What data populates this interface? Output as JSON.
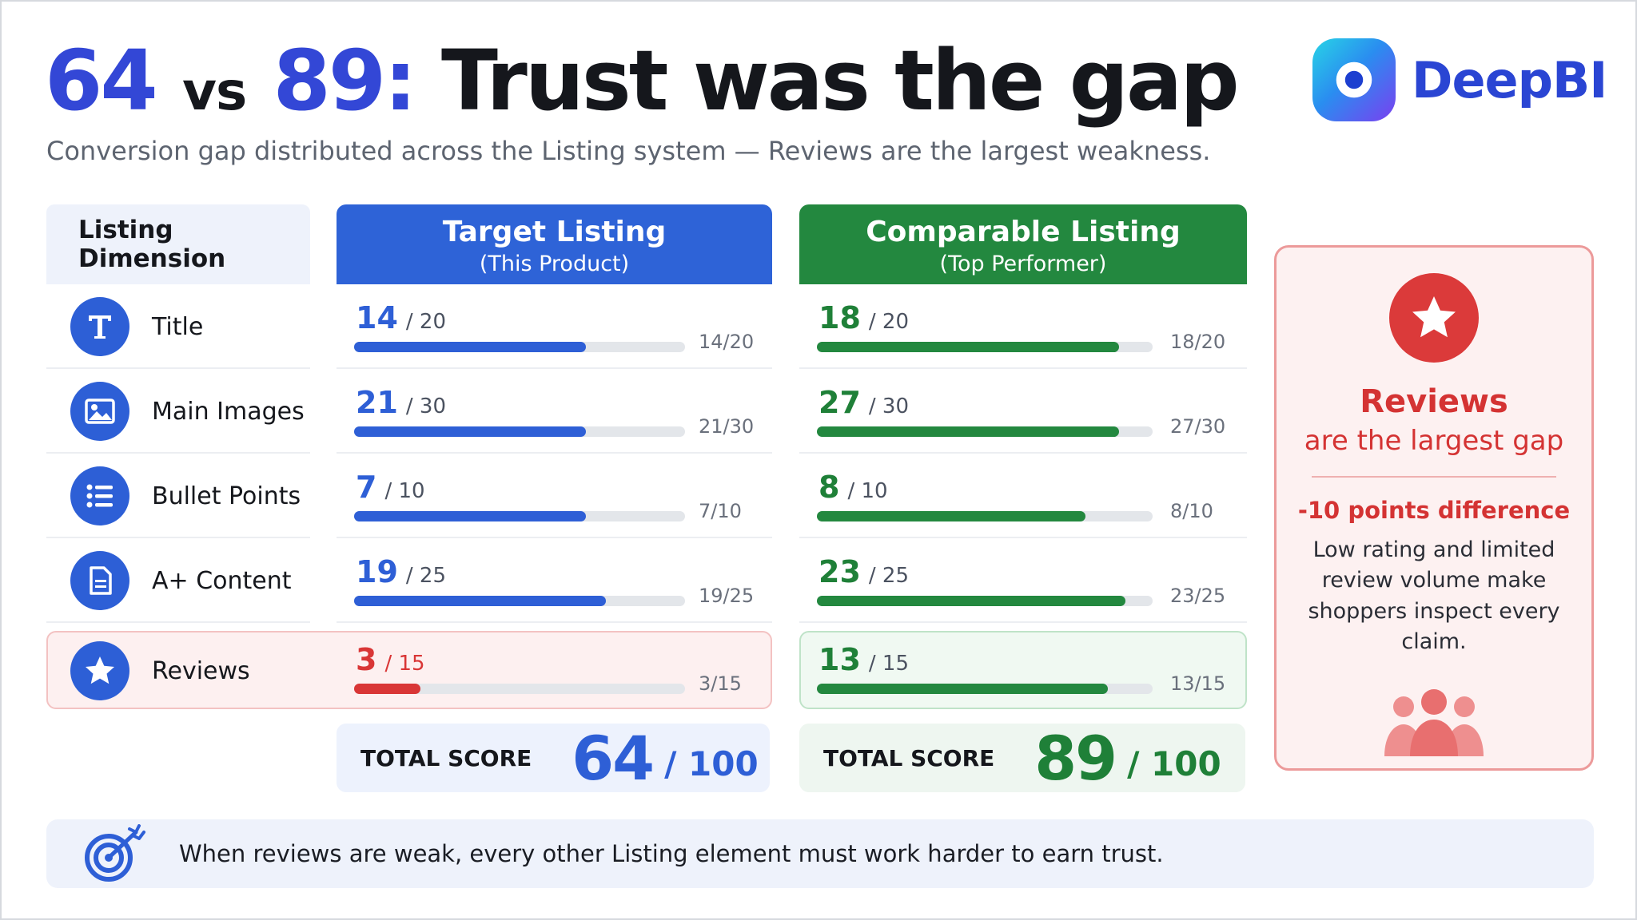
{
  "header": {
    "num_a": "64",
    "vs": "vs",
    "num_b": "89:",
    "title_rest": "Trust was the gap",
    "subtitle": "Conversion gap distributed across the Listing system — Reviews are the largest weakness."
  },
  "logo": {
    "text": "DeepBI"
  },
  "table": {
    "dimension_header": "Listing Dimension",
    "target_header": {
      "title": "Target Listing",
      "sub": "(This Product)"
    },
    "comparable_header": {
      "title": "Comparable Listing",
      "sub": "(Top Performer)"
    },
    "rows": [
      {
        "icon": "title-icon",
        "label": "Title",
        "max": "20",
        "target": {
          "score": "14",
          "of": "/ 20",
          "label": "14/20",
          "fraction": 0.7
        },
        "comparable": {
          "score": "18",
          "of": "/ 20",
          "label": "18/20",
          "fraction": 0.9
        }
      },
      {
        "icon": "image-icon",
        "label": "Main Images",
        "max": "30",
        "target": {
          "score": "21",
          "of": "/ 30",
          "label": "21/30",
          "fraction": 0.7
        },
        "comparable": {
          "score": "27",
          "of": "/ 30",
          "label": "27/30",
          "fraction": 0.9
        }
      },
      {
        "icon": "list-icon",
        "label": "Bullet Points",
        "max": "10",
        "target": {
          "score": "7",
          "of": "/ 10",
          "label": "7/10",
          "fraction": 0.7
        },
        "comparable": {
          "score": "8",
          "of": "/ 10",
          "label": "8/10",
          "fraction": 0.8
        }
      },
      {
        "icon": "document-icon",
        "label": "A+ Content",
        "max": "25",
        "target": {
          "score": "19",
          "of": "/ 25",
          "label": "19/25",
          "fraction": 0.76
        },
        "comparable": {
          "score": "23",
          "of": "/ 25",
          "label": "23/25",
          "fraction": 0.92
        }
      },
      {
        "icon": "star-icon",
        "label": "Reviews",
        "max": "15",
        "target": {
          "score": "3",
          "of": "/ 15",
          "label": "3/15",
          "fraction": 0.2
        },
        "comparable": {
          "score": "13",
          "of": "/ 15",
          "label": "13/15",
          "fraction": 0.867
        }
      }
    ],
    "total_target": {
      "label": "TOTAL SCORE",
      "value": "64",
      "max": "/ 100"
    },
    "total_comparable": {
      "label": "TOTAL SCORE",
      "value": "89",
      "max": "/ 100"
    }
  },
  "callout": {
    "line1": "Reviews",
    "line2": "are the largest gap",
    "diff": "-10 points difference",
    "body": "Low rating and limited review volume make shoppers inspect every claim."
  },
  "footer": {
    "text": "When reviews are weak, every other Listing element must work harder to earn trust."
  },
  "colors": {
    "blue": "#2e5fd6",
    "green": "#23883f",
    "red": "#d93636",
    "title_accent": "#3347d6"
  }
}
